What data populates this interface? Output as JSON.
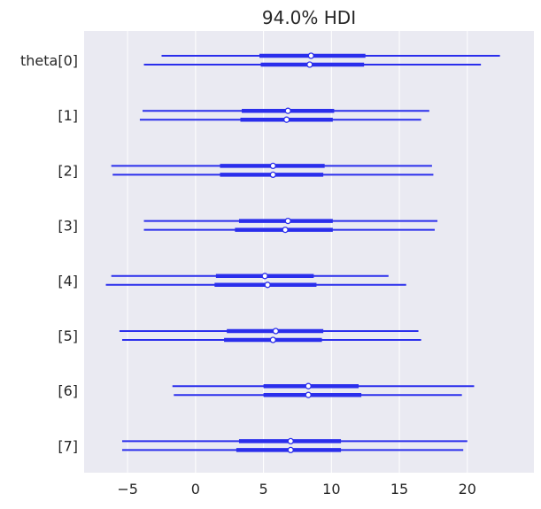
{
  "chart_data": {
    "type": "forest",
    "title": "94.0% HDI",
    "xlabel": "",
    "ylabel": "",
    "xlim": [
      -8.2,
      24.9
    ],
    "xticks": [
      -5,
      0,
      5,
      10,
      15,
      20
    ],
    "xtick_labels": [
      "−5",
      "0",
      "5",
      "10",
      "15",
      "20"
    ],
    "grid": true,
    "legend": "none",
    "colors": {
      "interval": "#2a2eec",
      "point_fill": "#ffffff",
      "background": "#eaeaf2",
      "grid": "#ffffff"
    },
    "rows": [
      {
        "label": "theta[0]",
        "chains": [
          {
            "hdi": [
              -2.5,
              22.4
            ],
            "iqr": [
              4.7,
              12.5
            ],
            "point": 8.5
          },
          {
            "hdi": [
              -3.8,
              21.0
            ],
            "iqr": [
              4.8,
              12.4
            ],
            "point": 8.4
          }
        ]
      },
      {
        "label": "[1]",
        "chains": [
          {
            "hdi": [
              -3.9,
              17.2
            ],
            "iqr": [
              3.4,
              10.2
            ],
            "point": 6.8
          },
          {
            "hdi": [
              -4.1,
              16.6
            ],
            "iqr": [
              3.3,
              10.1
            ],
            "point": 6.7
          }
        ]
      },
      {
        "label": "[2]",
        "chains": [
          {
            "hdi": [
              -6.2,
              17.4
            ],
            "iqr": [
              1.8,
              9.5
            ],
            "point": 5.7
          },
          {
            "hdi": [
              -6.1,
              17.5
            ],
            "iqr": [
              1.8,
              9.4
            ],
            "point": 5.7
          }
        ]
      },
      {
        "label": "[3]",
        "chains": [
          {
            "hdi": [
              -3.8,
              17.8
            ],
            "iqr": [
              3.2,
              10.1
            ],
            "point": 6.8
          },
          {
            "hdi": [
              -3.8,
              17.6
            ],
            "iqr": [
              2.9,
              10.1
            ],
            "point": 6.6
          }
        ]
      },
      {
        "label": "[4]",
        "chains": [
          {
            "hdi": [
              -6.2,
              14.2
            ],
            "iqr": [
              1.5,
              8.7
            ],
            "point": 5.1
          },
          {
            "hdi": [
              -6.6,
              15.5
            ],
            "iqr": [
              1.4,
              8.9
            ],
            "point": 5.3
          }
        ]
      },
      {
        "label": "[5]",
        "chains": [
          {
            "hdi": [
              -5.6,
              16.4
            ],
            "iqr": [
              2.3,
              9.4
            ],
            "point": 5.9
          },
          {
            "hdi": [
              -5.4,
              16.6
            ],
            "iqr": [
              2.1,
              9.3
            ],
            "point": 5.7
          }
        ]
      },
      {
        "label": "[6]",
        "chains": [
          {
            "hdi": [
              -1.7,
              20.5
            ],
            "iqr": [
              5.0,
              12.0
            ],
            "point": 8.3
          },
          {
            "hdi": [
              -1.6,
              19.6
            ],
            "iqr": [
              5.0,
              12.2
            ],
            "point": 8.3
          }
        ]
      },
      {
        "label": "[7]",
        "chains": [
          {
            "hdi": [
              -5.4,
              20.0
            ],
            "iqr": [
              3.2,
              10.7
            ],
            "point": 7.0
          },
          {
            "hdi": [
              -5.4,
              19.7
            ],
            "iqr": [
              3.0,
              10.7
            ],
            "point": 7.0
          }
        ]
      }
    ]
  }
}
